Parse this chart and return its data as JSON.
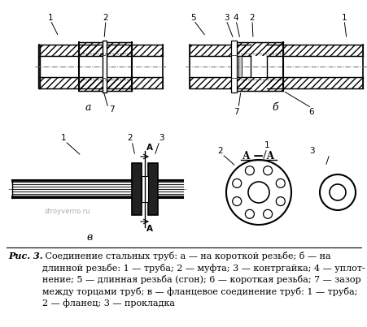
{
  "bg_color": "#ffffff",
  "watermark": "stroyverno.ru",
  "caption_bold": "Рис. 3.",
  "caption_normal": " Соединение стальных труб: а — на короткой резьбе; б — на\nдлинной резьбе: 1 — труба; 2 — муфта; 3 — контргайка; 4 — уплот-\nнение; 5 — длинная резьба (сгон); 6 — короткая резьба; 7 — зазор\nмежду торцами труб; в — фланцевое соединение труб: 1 — труба;\n2 — фланец; 3 — прокладка"
}
